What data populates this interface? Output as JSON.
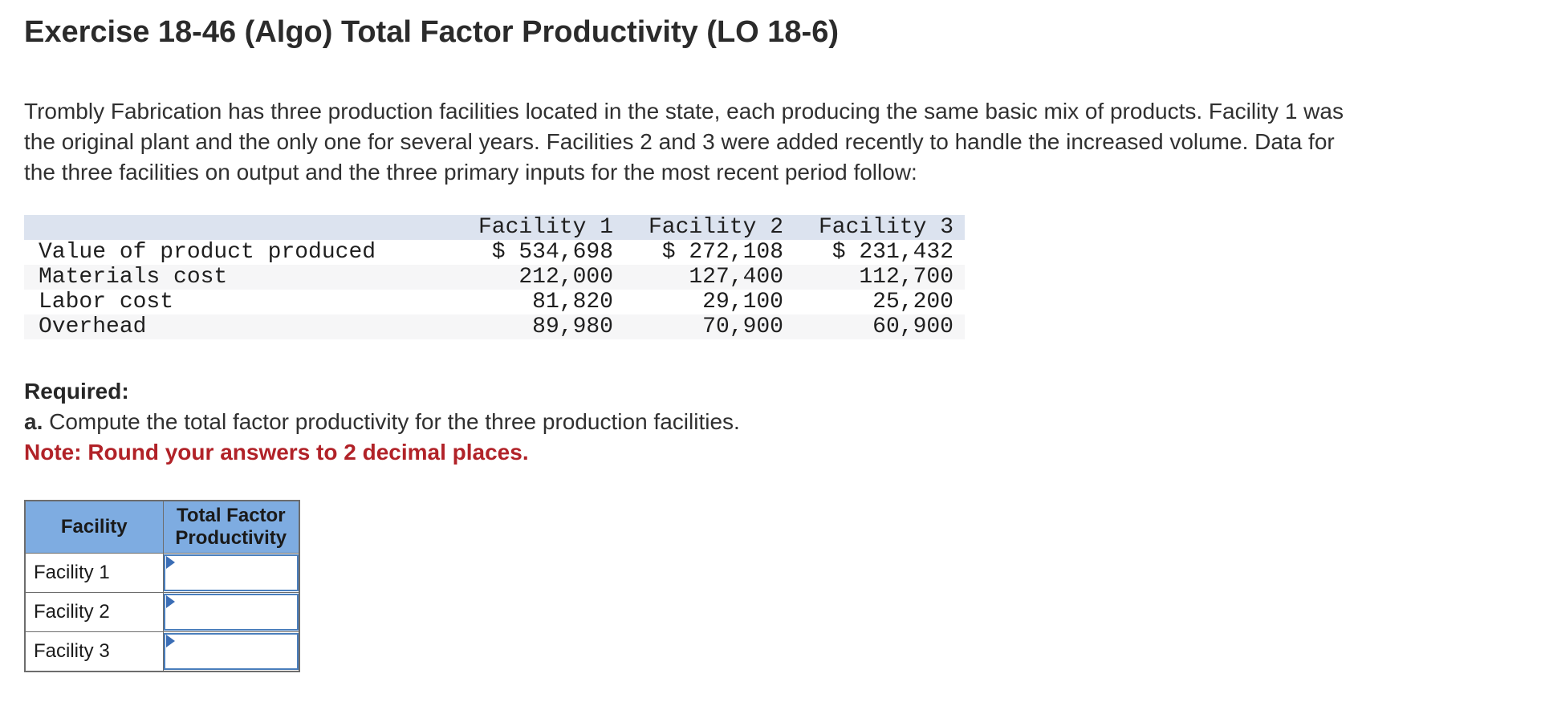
{
  "title": "Exercise 18-46 (Algo) Total Factor Productivity (LO 18-6)",
  "intro": "Trombly Fabrication has three production facilities located in the state, each producing the same basic mix of products. Facility 1 was\nthe original plant and the only one for several years. Facilities 2 and 3 were added recently to handle the increased volume. Data for\nthe three facilities on output and the three primary inputs for the most recent period follow:",
  "data_table": {
    "columns": [
      "",
      "Facility 1",
      "Facility 2",
      "Facility 3"
    ],
    "rows": [
      {
        "label": "Value of product produced",
        "values": [
          "$ 534,698",
          "$ 272,108",
          "$ 231,432"
        ]
      },
      {
        "label": "Materials cost",
        "values": [
          "212,000",
          "127,400",
          "112,700"
        ]
      },
      {
        "label": "Labor cost",
        "values": [
          "81,820",
          "29,100",
          "25,200"
        ]
      },
      {
        "label": "Overhead",
        "values": [
          "89,980",
          "70,900",
          "60,900"
        ]
      }
    ]
  },
  "required": {
    "heading": "Required:",
    "item_prefix": "a.",
    "item_text": " Compute the total factor productivity for the three production facilities.",
    "note": "Note: Round your answers to 2 decimal places."
  },
  "answer_table": {
    "col1_header": "Facility",
    "col2_header": "Total Factor Productivity",
    "rows": [
      {
        "label": "Facility 1",
        "value": ""
      },
      {
        "label": "Facility 2",
        "value": ""
      },
      {
        "label": "Facility 3",
        "value": ""
      }
    ]
  },
  "colors": {
    "answer_header_blue": "#7eace1",
    "input_border_blue": "#4a7ebc",
    "marker_blue": "#3a6db5",
    "note_red": "#b12228",
    "data_header_bg": "#dce3ef",
    "stripe_bg": "#f6f6f7"
  }
}
